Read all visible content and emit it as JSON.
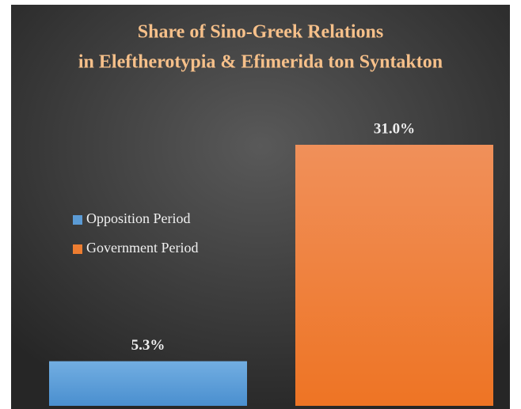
{
  "chart_data": {
    "type": "bar",
    "title": [
      "Share of Sino-Greek Relations",
      "in Eleftherotypia & Efimerida ton Syntakton"
    ],
    "categories": [
      null
    ],
    "series": [
      {
        "name": "Opposition Period",
        "color": "#5b9bd5",
        "values": [
          5.3
        ],
        "value_labels": [
          "5.3%"
        ]
      },
      {
        "name": "Government Period",
        "color": "#ed7d31",
        "values": [
          31.0
        ],
        "value_labels": [
          "31.0%"
        ]
      }
    ]
  }
}
